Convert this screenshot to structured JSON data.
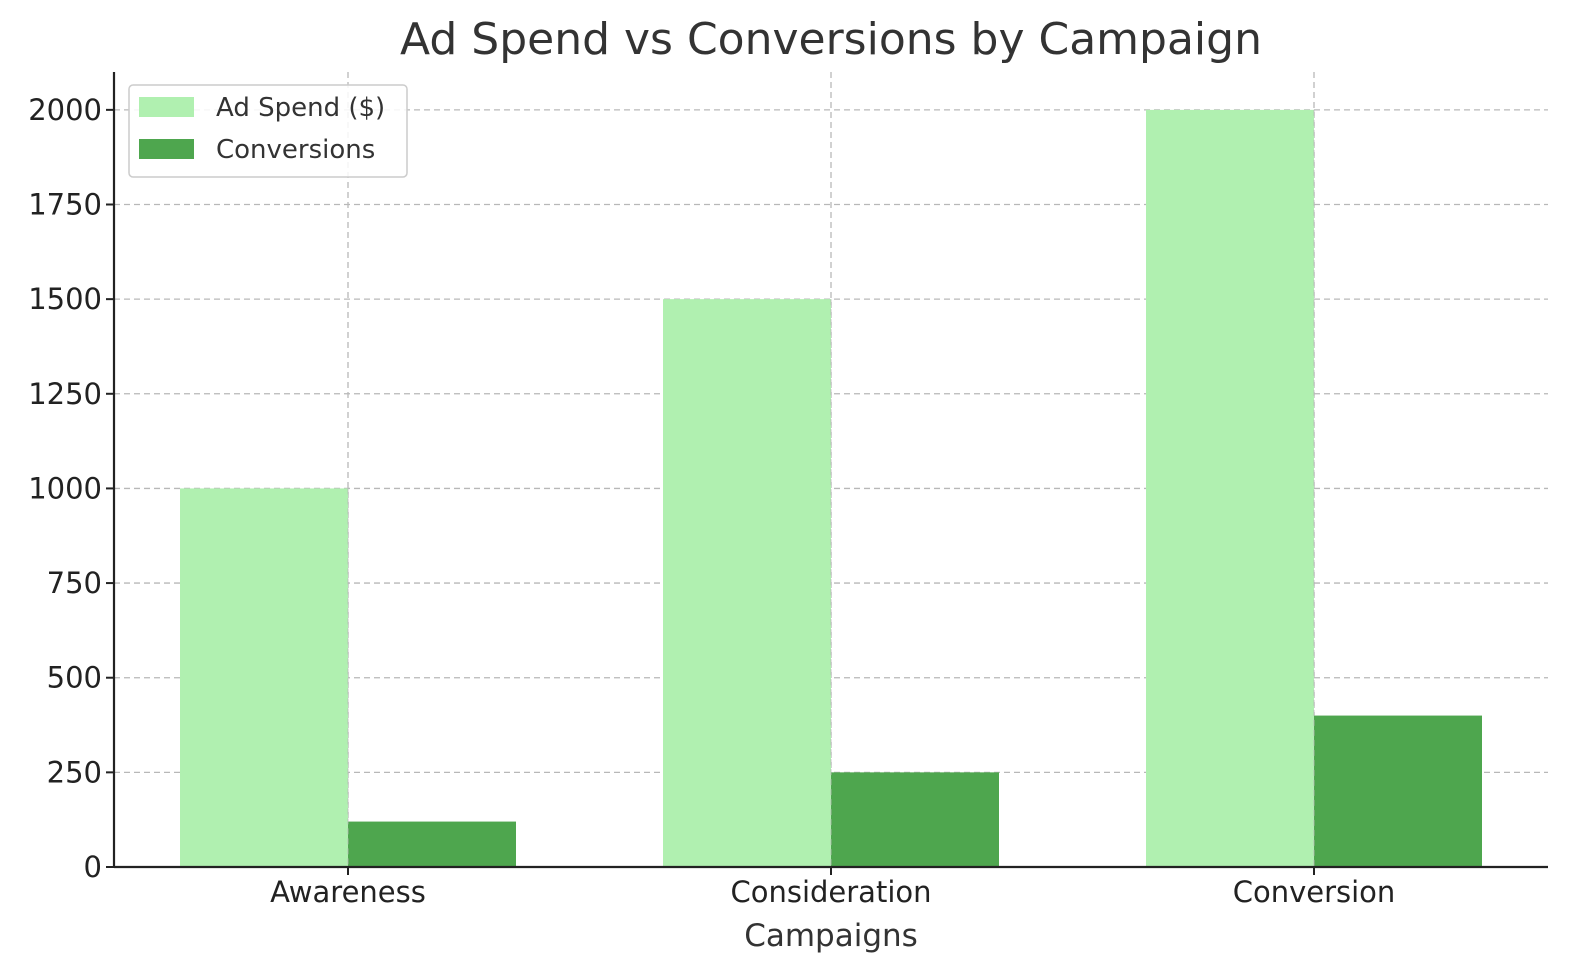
{
  "chart_data": {
    "type": "bar",
    "title": "Ad Spend vs Conversions by Campaign",
    "xlabel": "Campaigns",
    "ylabel": "",
    "categories": [
      "Awareness",
      "Consideration",
      "Conversion"
    ],
    "series": [
      {
        "name": "Ad Spend ($)",
        "values": [
          1000,
          1500,
          2000
        ],
        "color": "#b0f0b0"
      },
      {
        "name": "Conversions",
        "values": [
          120,
          250,
          400
        ],
        "color": "#4ea64e"
      }
    ],
    "ylim": [
      0,
      2100
    ],
    "yticks": [
      0,
      250,
      500,
      750,
      1000,
      1250,
      1500,
      1750,
      2000
    ],
    "grid": true,
    "legend_position": "top-left"
  }
}
